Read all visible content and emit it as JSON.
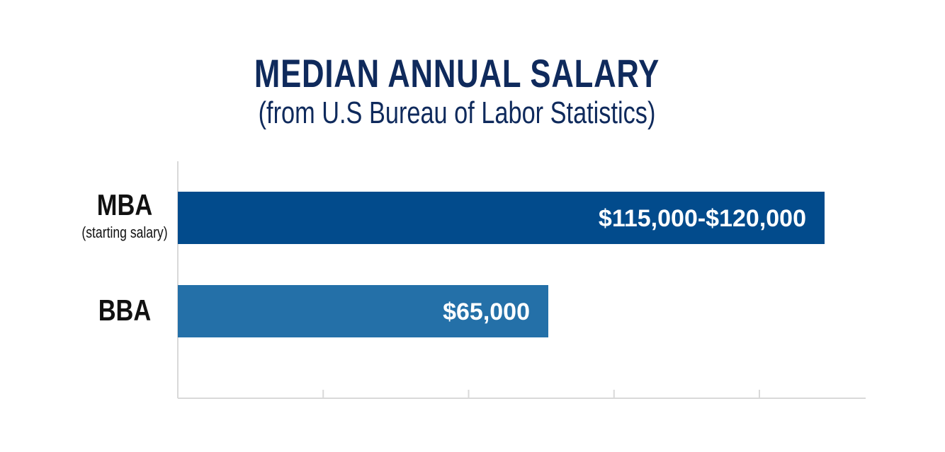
{
  "header": {
    "title": "MEDIAN ANNUAL SALARY",
    "subtitle": "(from U.S Bureau of Labor Statistics)"
  },
  "chart_data": {
    "type": "bar",
    "orientation": "horizontal",
    "title": "MEDIAN ANNUAL SALARY",
    "subtitle": "(from U.S Bureau of Labor Statistics)",
    "categories": [
      "MBA",
      "BBA"
    ],
    "category_sublabels": [
      "(starting salary)",
      ""
    ],
    "values": [
      117500,
      65000
    ],
    "value_ranges": [
      [
        115000,
        120000
      ],
      [
        65000,
        65000
      ]
    ],
    "data_labels": [
      "$115,000-$120,000",
      "$65,000"
    ],
    "colors": [
      "#024b8c",
      "#2470a8"
    ],
    "xlim": [
      0,
      150000
    ],
    "x_ticks": [
      25000,
      50000,
      75000,
      100000
    ],
    "grid": false,
    "legend": "none",
    "xlabel": "",
    "ylabel": ""
  }
}
